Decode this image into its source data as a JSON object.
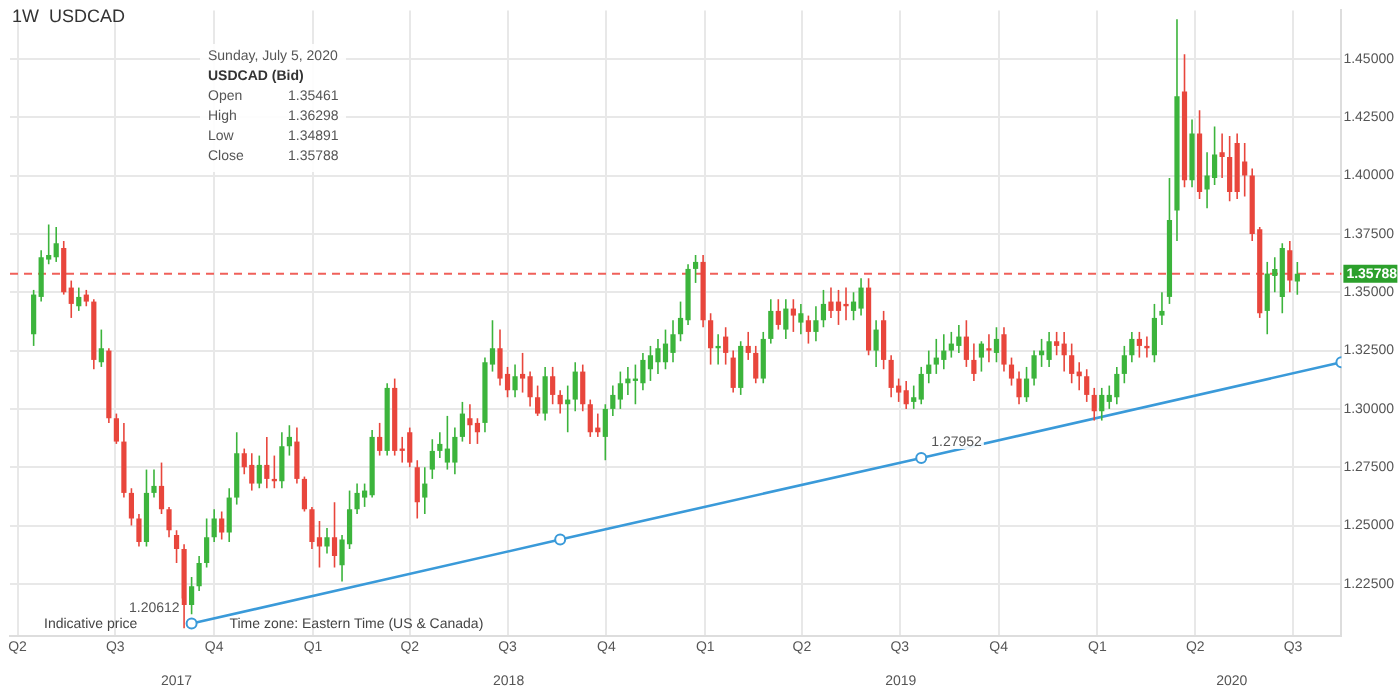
{
  "chart_data": {
    "type": "candlestick",
    "title": "1W  USDCAD",
    "x": [
      "2017-04-16",
      "2017-04-23",
      "2017-04-30",
      "2017-05-07",
      "2017-05-14",
      "2017-05-21",
      "2017-05-28",
      "2017-06-04",
      "2017-06-11",
      "2017-06-18",
      "2017-06-25",
      "2017-07-02",
      "2017-07-09",
      "2017-07-16",
      "2017-07-23",
      "2017-07-30",
      "2017-08-06",
      "2017-08-13",
      "2017-08-20",
      "2017-08-27",
      "2017-09-03",
      "2017-09-10",
      "2017-09-17",
      "2017-09-24",
      "2017-10-01",
      "2017-10-08",
      "2017-10-15",
      "2017-10-22",
      "2017-10-29",
      "2017-11-05",
      "2017-11-12",
      "2017-11-19",
      "2017-11-26",
      "2017-12-03",
      "2017-12-10",
      "2017-12-17",
      "2017-12-24",
      "2017-12-31",
      "2018-01-07",
      "2018-01-14",
      "2018-01-21",
      "2018-01-28",
      "2018-02-04",
      "2018-02-11",
      "2018-02-18",
      "2018-02-25",
      "2018-03-04",
      "2018-03-11",
      "2018-03-18",
      "2018-03-25",
      "2018-04-01",
      "2018-04-08",
      "2018-04-15",
      "2018-04-22",
      "2018-04-29",
      "2018-05-06",
      "2018-05-13",
      "2018-05-20",
      "2018-05-27",
      "2018-06-03",
      "2018-06-10",
      "2018-06-17",
      "2018-06-24",
      "2018-07-01",
      "2018-07-08",
      "2018-07-15",
      "2018-07-22",
      "2018-07-29",
      "2018-08-05",
      "2018-08-12",
      "2018-08-19",
      "2018-08-26",
      "2018-09-02",
      "2018-09-09",
      "2018-09-16",
      "2018-09-23",
      "2018-09-30",
      "2018-10-07",
      "2018-10-14",
      "2018-10-21",
      "2018-10-28",
      "2018-11-04",
      "2018-11-11",
      "2018-11-18",
      "2018-11-25",
      "2018-12-02",
      "2018-12-09",
      "2018-12-16",
      "2018-12-23",
      "2018-12-30",
      "2019-01-06",
      "2019-01-13",
      "2019-01-20",
      "2019-01-27",
      "2019-02-03",
      "2019-02-10",
      "2019-02-17",
      "2019-02-24",
      "2019-03-03",
      "2019-03-10",
      "2019-03-17",
      "2019-03-24",
      "2019-03-31",
      "2019-04-07",
      "2019-04-14",
      "2019-04-21",
      "2019-04-28",
      "2019-05-05",
      "2019-05-12",
      "2019-05-19",
      "2019-05-26",
      "2019-06-02",
      "2019-06-09",
      "2019-06-16",
      "2019-06-23",
      "2019-06-30",
      "2019-07-07",
      "2019-07-14",
      "2019-07-21",
      "2019-07-28",
      "2019-08-04",
      "2019-08-11",
      "2019-08-18",
      "2019-08-25",
      "2019-09-01",
      "2019-09-08",
      "2019-09-15",
      "2019-09-22",
      "2019-09-29",
      "2019-10-06",
      "2019-10-13",
      "2019-10-20",
      "2019-10-27",
      "2019-11-03",
      "2019-11-10",
      "2019-11-17",
      "2019-11-24",
      "2019-12-01",
      "2019-12-08",
      "2019-12-15",
      "2019-12-22",
      "2019-12-29",
      "2020-01-05",
      "2020-01-12",
      "2020-01-19",
      "2020-01-26",
      "2020-02-02",
      "2020-02-09",
      "2020-02-16",
      "2020-02-23",
      "2020-03-01",
      "2020-03-08",
      "2020-03-15",
      "2020-03-22",
      "2020-03-29",
      "2020-04-05",
      "2020-04-12",
      "2020-04-19",
      "2020-04-26",
      "2020-05-03",
      "2020-05-10",
      "2020-05-17",
      "2020-05-24",
      "2020-05-31",
      "2020-06-07",
      "2020-06-14",
      "2020-06-21",
      "2020-06-28",
      "2020-07-05"
    ],
    "ohlc": [
      [
        1.332,
        1.351,
        1.327,
        1.349
      ],
      [
        1.348,
        1.368,
        1.346,
        1.365
      ],
      [
        1.364,
        1.379,
        1.362,
        1.366
      ],
      [
        1.365,
        1.378,
        1.363,
        1.371
      ],
      [
        1.369,
        1.372,
        1.349,
        1.35
      ],
      [
        1.352,
        1.355,
        1.339,
        1.345
      ],
      [
        1.344,
        1.352,
        1.342,
        1.348
      ],
      [
        1.349,
        1.351,
        1.344,
        1.346
      ],
      [
        1.346,
        1.347,
        1.317,
        1.321
      ],
      [
        1.32,
        1.334,
        1.318,
        1.326
      ],
      [
        1.325,
        1.326,
        1.294,
        1.296
      ],
      [
        1.296,
        1.298,
        1.285,
        1.286
      ],
      [
        1.286,
        1.294,
        1.262,
        1.264
      ],
      [
        1.264,
        1.266,
        1.25,
        1.253
      ],
      [
        1.253,
        1.255,
        1.241,
        1.243
      ],
      [
        1.243,
        1.274,
        1.241,
        1.264
      ],
      [
        1.264,
        1.274,
        1.262,
        1.267
      ],
      [
        1.267,
        1.277,
        1.255,
        1.257
      ],
      [
        1.257,
        1.258,
        1.245,
        1.248
      ],
      [
        1.246,
        1.248,
        1.234,
        1.24
      ],
      [
        1.24,
        1.242,
        1.206,
        1.216
      ],
      [
        1.216,
        1.228,
        1.212,
        1.224
      ],
      [
        1.224,
        1.237,
        1.222,
        1.234
      ],
      [
        1.234,
        1.253,
        1.232,
        1.245
      ],
      [
        1.245,
        1.257,
        1.243,
        1.253
      ],
      [
        1.253,
        1.256,
        1.244,
        1.247
      ],
      [
        1.247,
        1.266,
        1.243,
        1.262
      ],
      [
        1.262,
        1.29,
        1.259,
        1.281
      ],
      [
        1.281,
        1.283,
        1.272,
        1.275
      ],
      [
        1.276,
        1.281,
        1.265,
        1.268
      ],
      [
        1.268,
        1.28,
        1.266,
        1.276
      ],
      [
        1.276,
        1.288,
        1.266,
        1.27
      ],
      [
        1.27,
        1.28,
        1.266,
        1.269
      ],
      [
        1.269,
        1.29,
        1.266,
        1.284
      ],
      [
        1.284,
        1.293,
        1.28,
        1.288
      ],
      [
        1.286,
        1.292,
        1.268,
        1.27
      ],
      [
        1.27,
        1.271,
        1.256,
        1.257
      ],
      [
        1.257,
        1.258,
        1.24,
        1.243
      ],
      [
        1.245,
        1.252,
        1.232,
        1.241
      ],
      [
        1.241,
        1.249,
        1.238,
        1.245
      ],
      [
        1.245,
        1.26,
        1.232,
        1.237
      ],
      [
        1.233,
        1.246,
        1.226,
        1.244
      ],
      [
        1.242,
        1.265,
        1.24,
        1.257
      ],
      [
        1.257,
        1.268,
        1.255,
        1.264
      ],
      [
        1.262,
        1.268,
        1.258,
        1.265
      ],
      [
        1.263,
        1.291,
        1.262,
        1.288
      ],
      [
        1.288,
        1.294,
        1.28,
        1.282
      ],
      [
        1.282,
        1.311,
        1.28,
        1.309
      ],
      [
        1.309,
        1.313,
        1.28,
        1.282
      ],
      [
        1.283,
        1.288,
        1.277,
        1.282
      ],
      [
        1.29,
        1.292,
        1.275,
        1.277
      ],
      [
        1.275,
        1.278,
        1.253,
        1.26
      ],
      [
        1.262,
        1.275,
        1.255,
        1.268
      ],
      [
        1.274,
        1.287,
        1.27,
        1.282
      ],
      [
        1.282,
        1.29,
        1.279,
        1.285
      ],
      [
        1.277,
        1.297,
        1.274,
        1.283
      ],
      [
        1.277,
        1.292,
        1.272,
        1.288
      ],
      [
        1.288,
        1.303,
        1.286,
        1.298
      ],
      [
        1.296,
        1.302,
        1.285,
        1.293
      ],
      [
        1.294,
        1.296,
        1.285,
        1.29
      ],
      [
        1.294,
        1.322,
        1.29,
        1.32
      ],
      [
        1.319,
        1.338,
        1.316,
        1.326
      ],
      [
        1.326,
        1.334,
        1.31,
        1.313
      ],
      [
        1.315,
        1.318,
        1.305,
        1.308
      ],
      [
        1.308,
        1.319,
        1.305,
        1.314
      ],
      [
        1.315,
        1.324,
        1.307,
        1.313
      ],
      [
        1.314,
        1.316,
        1.301,
        1.305
      ],
      [
        1.305,
        1.31,
        1.297,
        1.298
      ],
      [
        1.298,
        1.318,
        1.295,
        1.314
      ],
      [
        1.314,
        1.318,
        1.302,
        1.306
      ],
      [
        1.306,
        1.308,
        1.298,
        1.302
      ],
      [
        1.302,
        1.31,
        1.29,
        1.304
      ],
      [
        1.304,
        1.32,
        1.299,
        1.316
      ],
      [
        1.316,
        1.319,
        1.299,
        1.302
      ],
      [
        1.302,
        1.304,
        1.288,
        1.29
      ],
      [
        1.292,
        1.298,
        1.288,
        1.29
      ],
      [
        1.288,
        1.302,
        1.278,
        1.3
      ],
      [
        1.3,
        1.31,
        1.297,
        1.306
      ],
      [
        1.304,
        1.316,
        1.3,
        1.311
      ],
      [
        1.311,
        1.318,
        1.306,
        1.313
      ],
      [
        1.312,
        1.319,
        1.302,
        1.313
      ],
      [
        1.311,
        1.324,
        1.308,
        1.321
      ],
      [
        1.317,
        1.327,
        1.312,
        1.323
      ],
      [
        1.32,
        1.33,
        1.315,
        1.326
      ],
      [
        1.32,
        1.334,
        1.317,
        1.328
      ],
      [
        1.324,
        1.338,
        1.32,
        1.332
      ],
      [
        1.332,
        1.346,
        1.329,
        1.339
      ],
      [
        1.338,
        1.362,
        1.336,
        1.36
      ],
      [
        1.36,
        1.366,
        1.354,
        1.363
      ],
      [
        1.363,
        1.366,
        1.335,
        1.338
      ],
      [
        1.338,
        1.341,
        1.319,
        1.326
      ],
      [
        1.326,
        1.332,
        1.319,
        1.327
      ],
      [
        1.331,
        1.335,
        1.319,
        1.324
      ],
      [
        1.322,
        1.325,
        1.307,
        1.309
      ],
      [
        1.309,
        1.329,
        1.306,
        1.327
      ],
      [
        1.327,
        1.333,
        1.321,
        1.324
      ],
      [
        1.324,
        1.327,
        1.311,
        1.313
      ],
      [
        1.313,
        1.333,
        1.311,
        1.33
      ],
      [
        1.33,
        1.347,
        1.328,
        1.342
      ],
      [
        1.342,
        1.347,
        1.334,
        1.336
      ],
      [
        1.334,
        1.347,
        1.33,
        1.343
      ],
      [
        1.343,
        1.347,
        1.333,
        1.34
      ],
      [
        1.337,
        1.345,
        1.332,
        1.341
      ],
      [
        1.338,
        1.34,
        1.328,
        1.333
      ],
      [
        1.333,
        1.344,
        1.329,
        1.338
      ],
      [
        1.338,
        1.351,
        1.335,
        1.345
      ],
      [
        1.346,
        1.352,
        1.339,
        1.342
      ],
      [
        1.346,
        1.351,
        1.336,
        1.342
      ],
      [
        1.345,
        1.352,
        1.338,
        1.344
      ],
      [
        1.342,
        1.35,
        1.338,
        1.346
      ],
      [
        1.343,
        1.356,
        1.34,
        1.352
      ],
      [
        1.352,
        1.356,
        1.323,
        1.325
      ],
      [
        1.325,
        1.338,
        1.318,
        1.334
      ],
      [
        1.338,
        1.342,
        1.317,
        1.321
      ],
      [
        1.321,
        1.323,
        1.305,
        1.309
      ],
      [
        1.31,
        1.313,
        1.303,
        1.307
      ],
      [
        1.308,
        1.312,
        1.3,
        1.302
      ],
      [
        1.303,
        1.31,
        1.3,
        1.305
      ],
      [
        1.304,
        1.318,
        1.302,
        1.315
      ],
      [
        1.315,
        1.325,
        1.311,
        1.319
      ],
      [
        1.319,
        1.33,
        1.315,
        1.322
      ],
      [
        1.321,
        1.332,
        1.317,
        1.325
      ],
      [
        1.325,
        1.333,
        1.322,
        1.328
      ],
      [
        1.327,
        1.336,
        1.324,
        1.331
      ],
      [
        1.331,
        1.338,
        1.318,
        1.321
      ],
      [
        1.321,
        1.328,
        1.312,
        1.315
      ],
      [
        1.322,
        1.329,
        1.316,
        1.328
      ],
      [
        1.326,
        1.332,
        1.32,
        1.325
      ],
      [
        1.324,
        1.335,
        1.32,
        1.33
      ],
      [
        1.332,
        1.335,
        1.316,
        1.319
      ],
      [
        1.319,
        1.322,
        1.31,
        1.313
      ],
      [
        1.313,
        1.316,
        1.302,
        1.305
      ],
      [
        1.305,
        1.318,
        1.303,
        1.313
      ],
      [
        1.313,
        1.325,
        1.31,
        1.323
      ],
      [
        1.323,
        1.33,
        1.318,
        1.325
      ],
      [
        1.321,
        1.333,
        1.318,
        1.329
      ],
      [
        1.329,
        1.333,
        1.323,
        1.327
      ],
      [
        1.328,
        1.333,
        1.316,
        1.323
      ],
      [
        1.323,
        1.328,
        1.311,
        1.315
      ],
      [
        1.316,
        1.32,
        1.308,
        1.314
      ],
      [
        1.314,
        1.317,
        1.303,
        1.306
      ],
      [
        1.306,
        1.309,
        1.295,
        1.299
      ],
      [
        1.299,
        1.309,
        1.295,
        1.306
      ],
      [
        1.303,
        1.31,
        1.3,
        1.306
      ],
      [
        1.305,
        1.318,
        1.302,
        1.315
      ],
      [
        1.315,
        1.327,
        1.311,
        1.323
      ],
      [
        1.323,
        1.333,
        1.32,
        1.33
      ],
      [
        1.33,
        1.333,
        1.322,
        1.327
      ],
      [
        1.327,
        1.331,
        1.322,
        1.326
      ],
      [
        1.323,
        1.345,
        1.32,
        1.339
      ],
      [
        1.34,
        1.35,
        1.336,
        1.342
      ],
      [
        1.348,
        1.399,
        1.345,
        1.381
      ],
      [
        1.385,
        1.467,
        1.372,
        1.434
      ],
      [
        1.436,
        1.452,
        1.395,
        1.398
      ],
      [
        1.398,
        1.424,
        1.395,
        1.418
      ],
      [
        1.418,
        1.428,
        1.39,
        1.393
      ],
      [
        1.394,
        1.41,
        1.386,
        1.4
      ],
      [
        1.399,
        1.421,
        1.396,
        1.409
      ],
      [
        1.41,
        1.418,
        1.399,
        1.408
      ],
      [
        1.408,
        1.417,
        1.389,
        1.393
      ],
      [
        1.414,
        1.418,
        1.39,
        1.393
      ],
      [
        1.406,
        1.414,
        1.391,
        1.4
      ],
      [
        1.4,
        1.403,
        1.372,
        1.375
      ],
      [
        1.377,
        1.378,
        1.339,
        1.341
      ],
      [
        1.342,
        1.363,
        1.332,
        1.358
      ],
      [
        1.357,
        1.365,
        1.35,
        1.36
      ],
      [
        1.348,
        1.371,
        1.341,
        1.369
      ],
      [
        1.368,
        1.372,
        1.35,
        1.355
      ],
      [
        1.35461,
        1.36298,
        1.34891,
        1.35788
      ]
    ],
    "colors": [
      "#3cb43c",
      "#3cb43c",
      "#3cb43c",
      "#3cb43c",
      "#e8463c",
      "#e8463c",
      "#3cb43c",
      "#e8463c",
      "#e8463c",
      "#3cb43c",
      "#e8463c",
      "#e8463c",
      "#e8463c",
      "#e8463c",
      "#e8463c",
      "#3cb43c",
      "#3cb43c",
      "#e8463c",
      "#e8463c",
      "#e8463c",
      "#e8463c",
      "#3cb43c",
      "#3cb43c",
      "#3cb43c",
      "#3cb43c",
      "#e8463c",
      "#3cb43c",
      "#3cb43c",
      "#e8463c",
      "#e8463c",
      "#3cb43c",
      "#e8463c",
      "#e8463c",
      "#3cb43c",
      "#3cb43c",
      "#e8463c",
      "#e8463c",
      "#e8463c",
      "#e8463c",
      "#3cb43c",
      "#e8463c",
      "#3cb43c",
      "#3cb43c",
      "#3cb43c",
      "#3cb43c",
      "#3cb43c",
      "#e8463c",
      "#3cb43c",
      "#e8463c",
      "#e8463c",
      "#e8463c",
      "#e8463c",
      "#3cb43c",
      "#3cb43c",
      "#3cb43c",
      "#3cb43c",
      "#3cb43c",
      "#3cb43c",
      "#e8463c",
      "#e8463c",
      "#3cb43c",
      "#3cb43c",
      "#e8463c",
      "#e8463c",
      "#3cb43c",
      "#e8463c",
      "#e8463c",
      "#e8463c",
      "#3cb43c",
      "#e8463c",
      "#e8463c",
      "#3cb43c",
      "#3cb43c",
      "#e8463c",
      "#e8463c",
      "#e8463c",
      "#3cb43c",
      "#3cb43c",
      "#3cb43c",
      "#3cb43c",
      "#3cb43c",
      "#3cb43c",
      "#3cb43c",
      "#3cb43c",
      "#3cb43c",
      "#3cb43c",
      "#3cb43c",
      "#3cb43c",
      "#3cb43c",
      "#e8463c",
      "#e8463c",
      "#3cb43c",
      "#e8463c",
      "#e8463c",
      "#3cb43c",
      "#e8463c",
      "#e8463c",
      "#3cb43c",
      "#3cb43c",
      "#e8463c",
      "#3cb43c",
      "#e8463c",
      "#3cb43c",
      "#e8463c",
      "#3cb43c",
      "#3cb43c",
      "#e8463c",
      "#e8463c",
      "#e8463c",
      "#3cb43c",
      "#3cb43c",
      "#e8463c",
      "#3cb43c",
      "#e8463c",
      "#e8463c",
      "#e8463c",
      "#e8463c",
      "#3cb43c",
      "#3cb43c",
      "#3cb43c",
      "#3cb43c",
      "#3cb43c",
      "#3cb43c",
      "#3cb43c",
      "#e8463c",
      "#e8463c",
      "#3cb43c",
      "#e8463c",
      "#3cb43c",
      "#e8463c",
      "#e8463c",
      "#e8463c",
      "#3cb43c",
      "#3cb43c",
      "#3cb43c",
      "#3cb43c",
      "#e8463c",
      "#e8463c",
      "#e8463c",
      "#e8463c",
      "#e8463c",
      "#e8463c",
      "#3cb43c",
      "#3cb43c",
      "#3cb43c",
      "#3cb43c",
      "#3cb43c",
      "#e8463c",
      "#e8463c",
      "#3cb43c",
      "#3cb43c",
      "#3cb43c",
      "#3cb43c",
      "#e8463c",
      "#3cb43c",
      "#e8463c",
      "#3cb43c",
      "#3cb43c",
      "#e8463c",
      "#e8463c",
      "#e8463c",
      "#e8463c",
      "#e8463c",
      "#e8463c",
      "#3cb43c",
      "#3cb43c",
      "#3cb43c",
      "#e8463c",
      "#3cb43c"
    ],
    "series": [
      {
        "type": "line",
        "x": [
          "2017-09-10",
          "2018-08-19",
          "2019-07-21",
          "2020-08-15"
        ],
        "values": [
          1.208,
          1.244,
          1.279,
          1.32
        ],
        "color": "#3a9ad9",
        "marker": "circle"
      }
    ],
    "xlim": [
      "2017-03-25",
      "2020-08-15"
    ],
    "xticks": [
      {
        "value": "2017-04-01",
        "label": "Q2"
      },
      {
        "value": "2017-07-01",
        "label": "Q3"
      },
      {
        "value": "2017-10-01",
        "label": "Q4"
      },
      {
        "value": "2018-01-01",
        "label": "Q1"
      },
      {
        "value": "2018-04-01",
        "label": "Q2"
      },
      {
        "value": "2018-07-01",
        "label": "Q3"
      },
      {
        "value": "2018-10-01",
        "label": "Q4"
      },
      {
        "value": "2019-01-01",
        "label": "Q1"
      },
      {
        "value": "2019-04-01",
        "label": "Q2"
      },
      {
        "value": "2019-07-01",
        "label": "Q3"
      },
      {
        "value": "2019-10-01",
        "label": "Q4"
      },
      {
        "value": "2020-01-01",
        "label": "Q1"
      },
      {
        "value": "2020-04-01",
        "label": "Q2"
      },
      {
        "value": "2020-07-01",
        "label": "Q3"
      }
    ],
    "x2lim": [
      "2017-03-25",
      "2020-08-15"
    ],
    "x2ticks": [
      {
        "value": "2017-08-27",
        "label": "2017"
      },
      {
        "value": "2018-07-02",
        "label": "2018"
      },
      {
        "value": "2019-07-02",
        "label": "2019"
      },
      {
        "value": "2020-05-05",
        "label": "2020"
      }
    ],
    "ylim": [
      1.2025,
      1.4708
    ],
    "yticks": [
      {
        "value": 1.225,
        "label": "1.22500"
      },
      {
        "value": 1.25,
        "label": "1.25000"
      },
      {
        "value": 1.275,
        "label": "1.27500"
      },
      {
        "value": 1.3,
        "label": "1.30000"
      },
      {
        "value": 1.325,
        "label": "1.32500"
      },
      {
        "value": 1.35,
        "label": "1.35000"
      },
      {
        "value": 1.375,
        "label": "1.37500"
      },
      {
        "value": 1.4,
        "label": "1.40000"
      },
      {
        "value": 1.425,
        "label": "1.42500"
      },
      {
        "value": 1.45,
        "label": "1.45000"
      }
    ],
    "grid": true,
    "ref_lines": [
      {
        "axis": "y",
        "value": 1.35788,
        "label": "1.35788",
        "color": "#f0605a",
        "line_style": "dashed"
      }
    ],
    "annotations": [
      "Sunday, July 5, 2020",
      "USDCAD (Bid)",
      "Open",
      "1.35461",
      "High",
      "1.36298",
      "Low",
      "1.34891",
      "Close",
      "1.35788",
      "Indicative price",
      "Time zone: Eastern Time (US & Canada)",
      {
        "text": "1.20612",
        "x": "2017-09-10",
        "y": 1.208
      },
      {
        "text": "1.27952",
        "x": "2019-07-21",
        "y": 1.279
      }
    ]
  }
}
